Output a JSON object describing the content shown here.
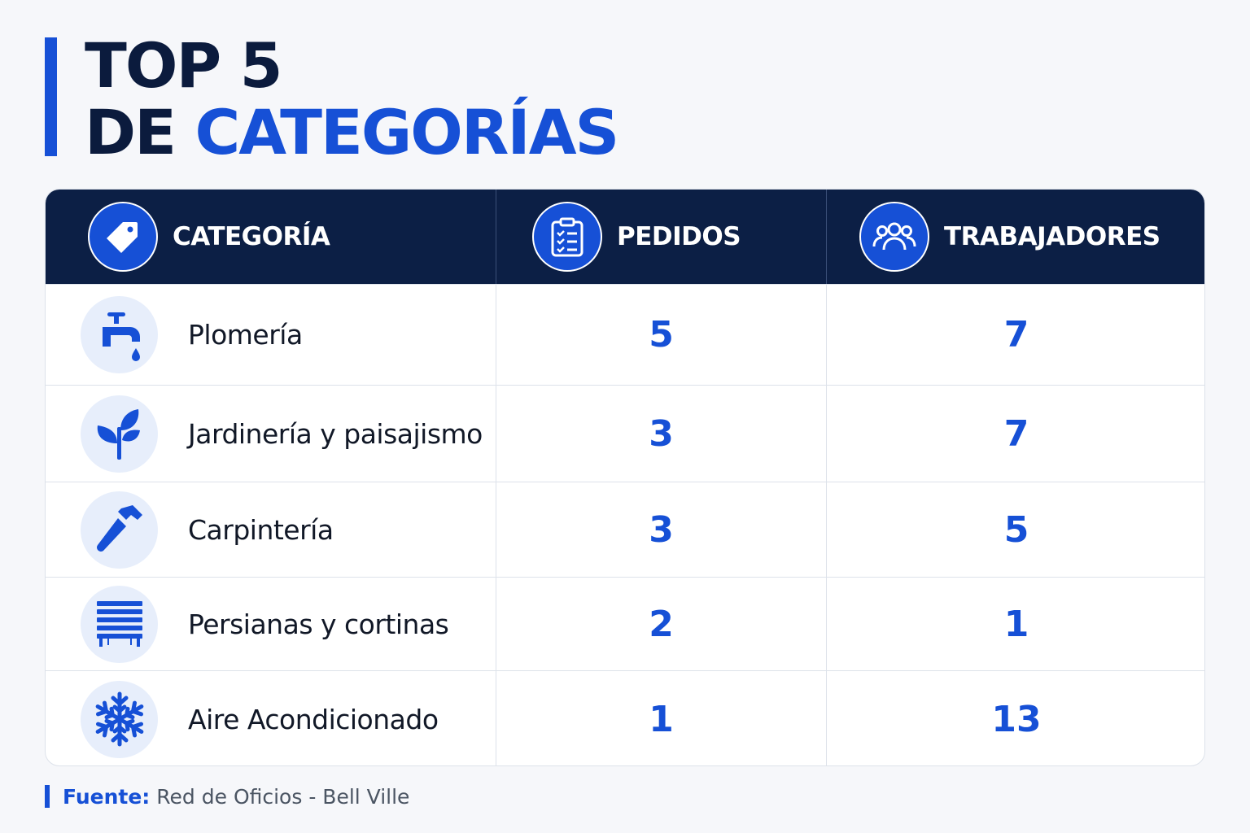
{
  "title": {
    "line1": "TOP 5",
    "line2_prefix": "DE ",
    "line2_accent": "CATEGORÍAS"
  },
  "colors": {
    "accent": "#1650d6",
    "header_bg": "#0c1f45",
    "title_dark": "#0b1b3d",
    "icon_bg": "#e7eefb"
  },
  "table": {
    "headers": [
      {
        "label": "CATEGORÍA",
        "icon": "tag-icon"
      },
      {
        "label": "PEDIDOS",
        "icon": "clipboard-checklist-icon"
      },
      {
        "label": "TRABAJADORES",
        "icon": "people-group-icon"
      }
    ],
    "rows": [
      {
        "categoria": "Plomería",
        "icon": "faucet-icon",
        "pedidos": "5",
        "trabajadores": "7"
      },
      {
        "categoria": "Jardinería y paisajismo",
        "icon": "plant-icon",
        "pedidos": "3",
        "trabajadores": "7"
      },
      {
        "categoria": "Carpintería",
        "icon": "hammer-icon",
        "pedidos": "3",
        "trabajadores": "5"
      },
      {
        "categoria": "Persianas y cortinas",
        "icon": "blinds-icon",
        "pedidos": "2",
        "trabajadores": "1"
      },
      {
        "categoria": "Aire Acondicionado",
        "icon": "snowflake-icon",
        "pedidos": "1",
        "trabajadores": "13"
      }
    ]
  },
  "chart_data": {
    "type": "table",
    "columns": [
      "CATEGORÍA",
      "PEDIDOS",
      "TRABAJADORES"
    ],
    "rows": [
      [
        "Plomería",
        5,
        7
      ],
      [
        "Jardinería y paisajismo",
        3,
        7
      ],
      [
        "Carpintería",
        3,
        5
      ],
      [
        "Persianas y cortinas",
        2,
        1
      ],
      [
        "Aire Acondicionado",
        1,
        13
      ]
    ]
  },
  "source": {
    "label": "Fuente:",
    "text": "Red de Oficios - Bell Ville"
  }
}
